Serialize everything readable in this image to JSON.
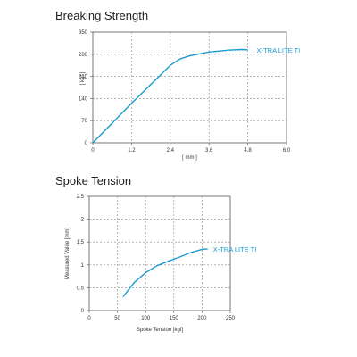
{
  "chart_data": [
    {
      "type": "line",
      "title": "Breaking Strength",
      "xlabel": "[ mm ]",
      "ylabel": "[ kgf ]",
      "xlim": [
        0,
        6.0
      ],
      "ylim": [
        0,
        350
      ],
      "x_ticks": [
        "0",
        "1.2",
        "2.4",
        "3.6",
        "4.8",
        "6.0"
      ],
      "y_ticks": [
        "0",
        "70",
        "140",
        "210",
        "280",
        "350"
      ],
      "grid": true,
      "series": [
        {
          "name": "X-TRA LITE TI",
          "color": "#1a9bd0",
          "x": [
            0.0,
            0.6,
            1.2,
            1.8,
            2.4,
            2.7,
            3.0,
            3.6,
            4.2,
            4.6,
            4.8
          ],
          "y": [
            0,
            62,
            125,
            185,
            245,
            265,
            275,
            287,
            293,
            295,
            294
          ]
        }
      ]
    },
    {
      "type": "line",
      "title": "Spoke Tension",
      "xlabel": "Spoke Tension [kgf]",
      "ylabel": "Measured Value [mm]",
      "xlim": [
        0,
        250
      ],
      "ylim": [
        0,
        2.5
      ],
      "x_ticks": [
        "0",
        "50",
        "100",
        "150",
        "200",
        "250"
      ],
      "y_ticks": [
        "0",
        "0.5",
        "1",
        "1.5",
        "2",
        "2.5"
      ],
      "grid": true,
      "series": [
        {
          "name": "X-TRA LITE TI",
          "color": "#1a9bd0",
          "x": [
            60,
            80,
            100,
            120,
            140,
            160,
            180,
            200,
            210
          ],
          "y": [
            0.3,
            0.62,
            0.83,
            0.98,
            1.08,
            1.17,
            1.27,
            1.34,
            1.35
          ]
        }
      ]
    }
  ]
}
